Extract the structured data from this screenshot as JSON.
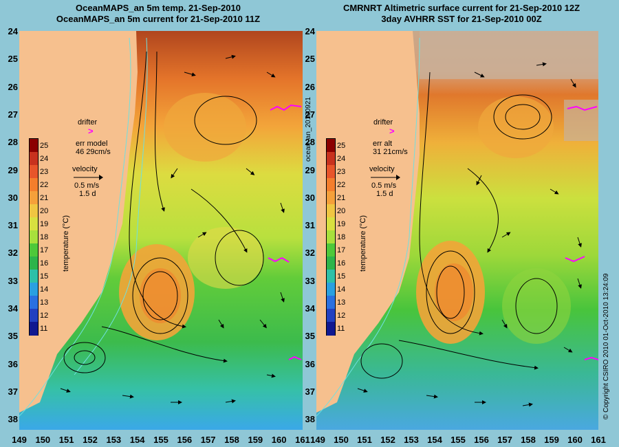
{
  "left_panel": {
    "title_line1": "OceanMAPS_an 5m temp. 21-Sep-2010",
    "title_line2": "OceanMAPS_an 5m current for 21-Sep-2010 11Z",
    "legend": {
      "drifter_label": "drifter",
      "err_label": "err model",
      "err_value": "46 29cm/s",
      "velocity_label": "velocity",
      "velocity_scale": "0.5 m/s",
      "velocity_days": "1.5 d",
      "colorbar_label": "temperature (°C)"
    }
  },
  "right_panel": {
    "title_line1": "CMRNRT Altimetric surface current for 21-Sep-2010 12Z",
    "title_line2": "3day AVHRR SST for 21-Sep-2010 00Z",
    "legend": {
      "drifter_label": "drifter",
      "err_label": "err alt",
      "err_value": "31 21cm/s",
      "velocity_label": "velocity",
      "velocity_scale": "0.5 m/s",
      "velocity_days": "1.5 d",
      "colorbar_label": "temperature (°C)"
    }
  },
  "side_label_mid": "ocean_an_20100921",
  "side_label_right": "© Copyright CSIRO 2010   01-Oct-2010 13:24:09",
  "colorbar_ticks": [
    "25",
    "24",
    "23",
    "22",
    "21",
    "20",
    "19",
    "18",
    "17",
    "16",
    "15",
    "14",
    "13",
    "12",
    "11"
  ],
  "colorbar_colors": [
    "#8b0000",
    "#c8321e",
    "#e8552a",
    "#f47e2c",
    "#f5a03a",
    "#f0c642",
    "#d8e040",
    "#a8e03c",
    "#4ec83a",
    "#2eb44a",
    "#2ec0a8",
    "#2aa0e0",
    "#2a70e0",
    "#2240c0",
    "#101890"
  ],
  "lat_labels": [
    "24",
    "25",
    "26",
    "27",
    "28",
    "29",
    "30",
    "31",
    "32",
    "33",
    "34",
    "35",
    "36",
    "37",
    "38"
  ],
  "lon_labels": [
    "149",
    "150",
    "151",
    "152",
    "153",
    "154",
    "155",
    "156",
    "157",
    "158",
    "159",
    "160",
    "161"
  ],
  "colors": {
    "background": "#8fc7d6",
    "land": "#f6c08e",
    "drifter": "#ff00ff"
  }
}
